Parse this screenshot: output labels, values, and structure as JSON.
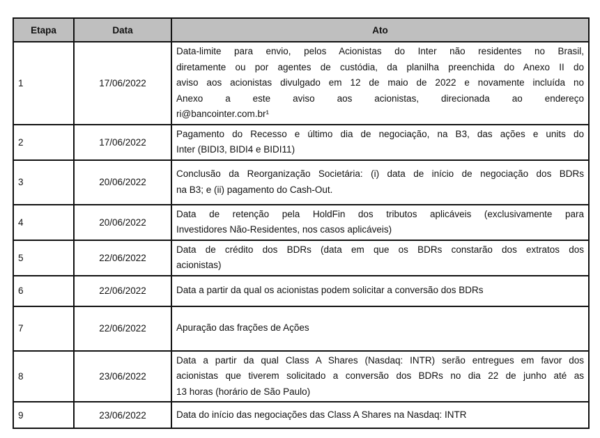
{
  "headers": [
    "Etapa",
    "Data",
    "Ato"
  ],
  "rows": [
    {
      "etapa": "1",
      "data": "17/06/2022",
      "ato": [
        "Data-limite para envio, pelos Acionistas do Inter não residentes no Brasil,",
        "diretamente ou por agentes de custódia, da planilha preenchida do Anexo II do",
        "aviso aos acionistas divulgado em 12 de maio de 2022 e novamente incluída no",
        "Anexo a este aviso aos acionistas, direcionada ao endereço",
        "ri@bancointer.com.br¹"
      ]
    },
    {
      "etapa": "2",
      "data": "17/06/2022",
      "ato": [
        "Pagamento do Recesso e último dia de negociação, na B3, das ações e units do",
        "Inter (BIDI3, BIDI4 e BIDI11)"
      ]
    },
    {
      "etapa": "3",
      "data": "20/06/2022",
      "ato": [
        "Conclusão da Reorganização Societária: (i) data de início de negociação dos BDRs",
        "na B3; e (ii) pagamento do Cash-Out."
      ]
    },
    {
      "etapa": "4",
      "data": "20/06/2022",
      "ato": [
        "Data de retenção pela HoldFin dos tributos aplicáveis (exclusivamente para",
        "Investidores Não-Residentes, nos casos aplicáveis)"
      ]
    },
    {
      "etapa": "5",
      "data": "22/06/2022",
      "ato": [
        "Data de crédito dos BDRs (data em que os BDRs constarão dos extratos dos",
        "acionistas)"
      ]
    },
    {
      "etapa": "6",
      "data": "22/06/2022",
      "ato": [
        "Data a partir da qual os acionistas podem solicitar a conversão dos BDRs"
      ]
    },
    {
      "etapa": "7",
      "data": "22/06/2022",
      "ato": [
        "Apuração das frações de Ações"
      ]
    },
    {
      "etapa": "8",
      "data": "23/06/2022",
      "ato": [
        "Data a partir da qual Class A Shares (Nasdaq: INTR) serão entregues em favor dos",
        "acionistas que tiverem solicitado a conversão dos BDRs no dia 22 de junho até as",
        "13 horas (horário de São Paulo)"
      ]
    },
    {
      "etapa": "9",
      "data": "23/06/2022",
      "ato": [
        "Data do início das negociações das Class A Shares na Nasdaq: INTR"
      ]
    }
  ],
  "colors": {
    "header_bg": "#bfbfbf",
    "border": "#111111"
  }
}
